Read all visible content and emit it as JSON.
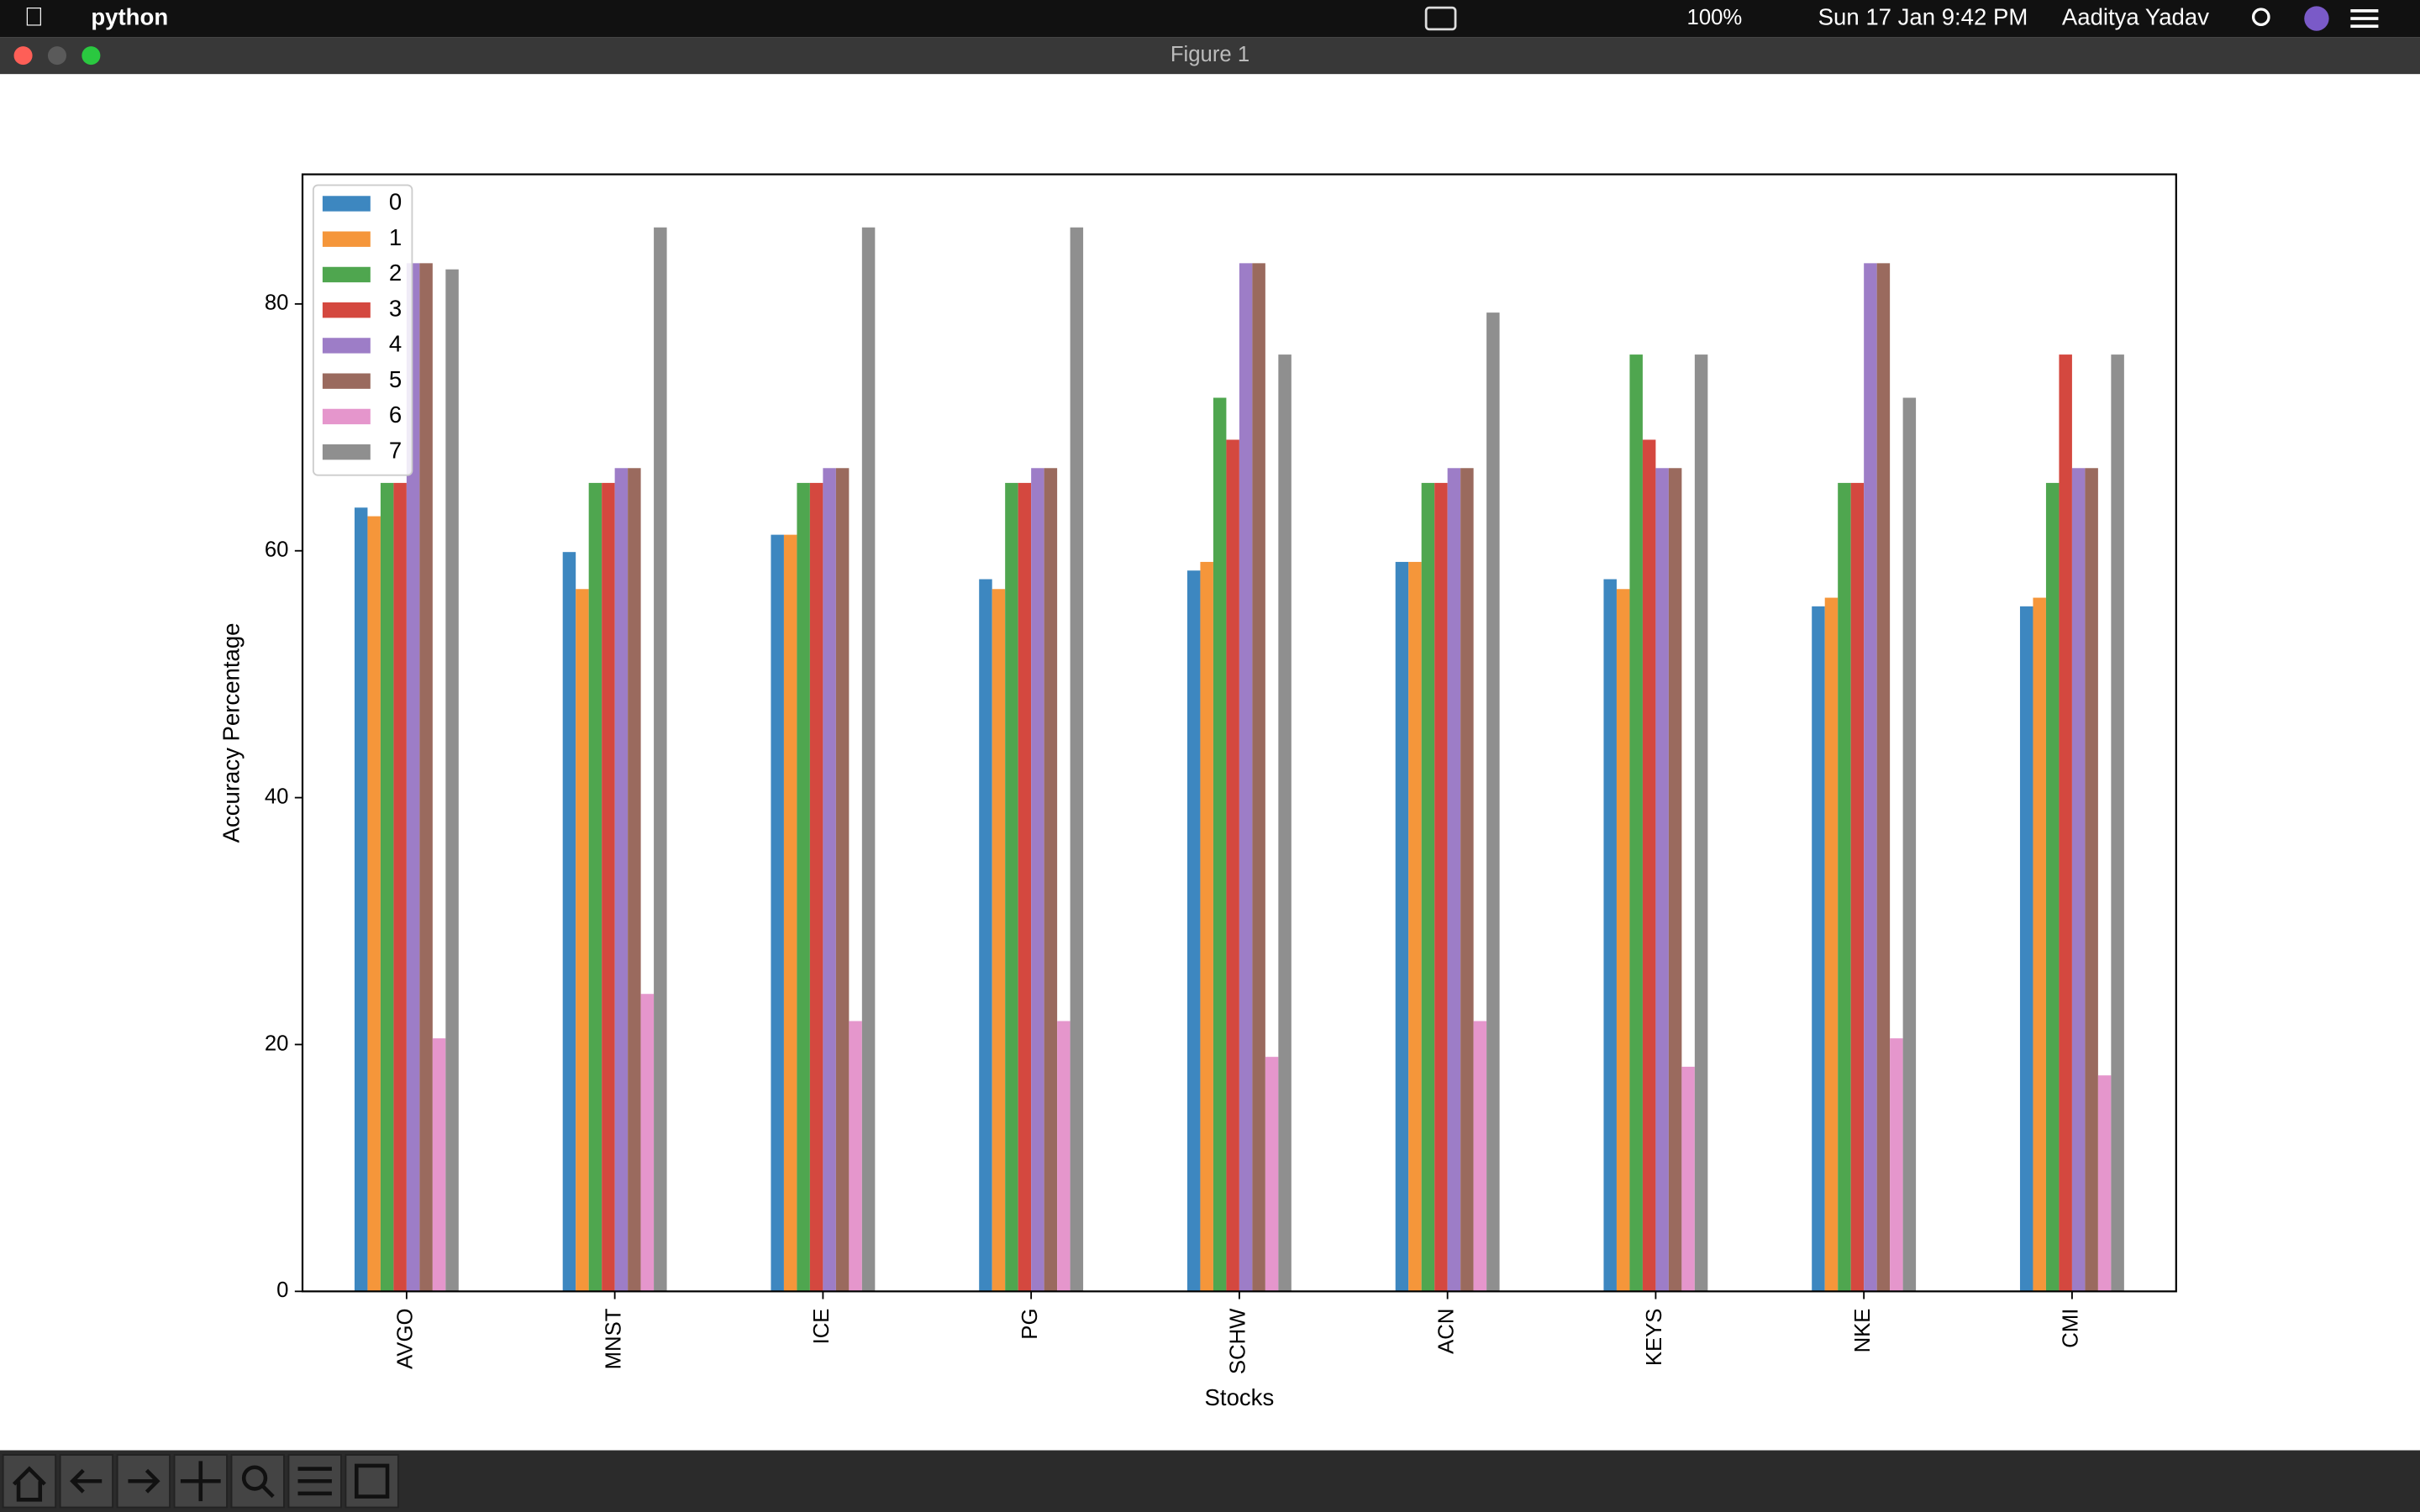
{
  "menu_bar": {
    "app": "python",
    "battery": "100%",
    "datetime": "Sun 17 Jan  9:42 PM",
    "user": "Aaditya Yadav"
  },
  "window": {
    "title": "Figure 1"
  },
  "chart_data": {
    "type": "bar",
    "xlabel": "Stocks",
    "ylabel": "Accuracy Percentage",
    "categories": [
      "AVGO",
      "MNST",
      "ICE",
      "PG",
      "SCHW",
      "ACN",
      "KEYS",
      "NKE",
      "CMI"
    ],
    "series": [
      {
        "name": "0",
        "color": "#3d87c0",
        "values": [
          63.5,
          59.9,
          61.3,
          57.7,
          58.4,
          59.1,
          57.7,
          55.5,
          55.5
        ]
      },
      {
        "name": "1",
        "color": "#f5963a",
        "values": [
          62.8,
          56.9,
          61.3,
          56.9,
          59.1,
          59.1,
          56.9,
          56.2,
          56.2
        ]
      },
      {
        "name": "2",
        "color": "#4fa64f",
        "values": [
          65.5,
          65.5,
          65.5,
          65.5,
          72.4,
          65.5,
          75.9,
          65.5,
          65.5
        ]
      },
      {
        "name": "3",
        "color": "#d4483f",
        "values": [
          65.5,
          65.5,
          65.5,
          65.5,
          69.0,
          65.5,
          69.0,
          65.5,
          75.9
        ]
      },
      {
        "name": "4",
        "color": "#9d7dc7",
        "values": [
          83.3,
          66.7,
          66.7,
          66.7,
          83.3,
          66.7,
          66.7,
          83.3,
          66.7
        ]
      },
      {
        "name": "5",
        "color": "#9a6a5e",
        "values": [
          83.3,
          66.7,
          66.7,
          66.7,
          83.3,
          66.7,
          66.7,
          83.3,
          66.7
        ]
      },
      {
        "name": "6",
        "color": "#e596cc",
        "values": [
          20.5,
          24.1,
          21.9,
          21.9,
          19.0,
          21.9,
          18.2,
          20.5,
          17.5
        ]
      },
      {
        "name": "7",
        "color": "#8f8f8f",
        "values": [
          82.8,
          86.2,
          86.2,
          86.2,
          75.9,
          79.3,
          75.9,
          72.4,
          75.9
        ]
      }
    ],
    "ylim": [
      0,
      90.5
    ],
    "yticks": [
      0,
      20,
      40,
      60,
      80
    ],
    "legend": "upper left",
    "grid": false
  }
}
